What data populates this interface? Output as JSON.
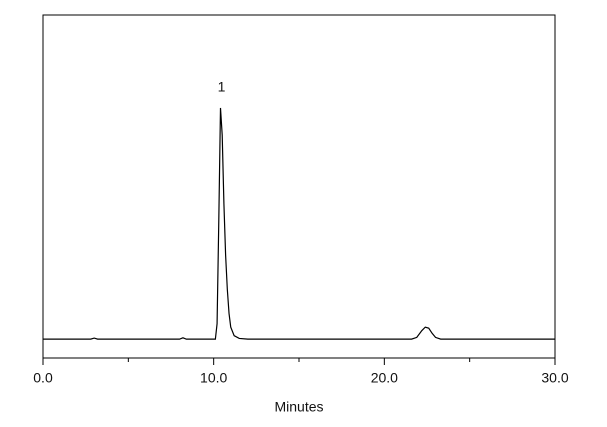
{
  "chart_data": {
    "type": "line",
    "x_label": "Minutes",
    "x": [
      0,
      2.8,
      3.0,
      3.2,
      8.0,
      8.2,
      8.4,
      10.1,
      10.2,
      10.3,
      10.4,
      10.5,
      10.6,
      10.7,
      10.8,
      10.9,
      11.0,
      11.2,
      11.5,
      12.0,
      21.6,
      21.9,
      22.2,
      22.4,
      22.6,
      22.8,
      23.0,
      23.3,
      30.0
    ],
    "series": [
      {
        "color": "#000000",
        "values": [
          5.5,
          5.5,
          5.8,
          5.5,
          5.5,
          5.9,
          5.5,
          5.5,
          10,
          40,
          72.9,
          65,
          45,
          30,
          20,
          13,
          9,
          6.5,
          5.7,
          5.5,
          5.5,
          6,
          8,
          9,
          8.7,
          7.2,
          6,
          5.5,
          5.5
        ]
      }
    ],
    "annotations": [
      {
        "text": "1",
        "x": 10.4
      }
    ],
    "xlim": [
      0,
      30
    ],
    "ylim": [
      0,
      100
    ],
    "xticks": [
      {
        "value": 0,
        "label": "0.0"
      },
      {
        "value": 10,
        "label": "10.0"
      },
      {
        "value": 20,
        "label": "20.0"
      },
      {
        "value": 30,
        "label": "30.0"
      }
    ],
    "xminor": [
      5,
      15,
      25
    ],
    "grid": false
  }
}
